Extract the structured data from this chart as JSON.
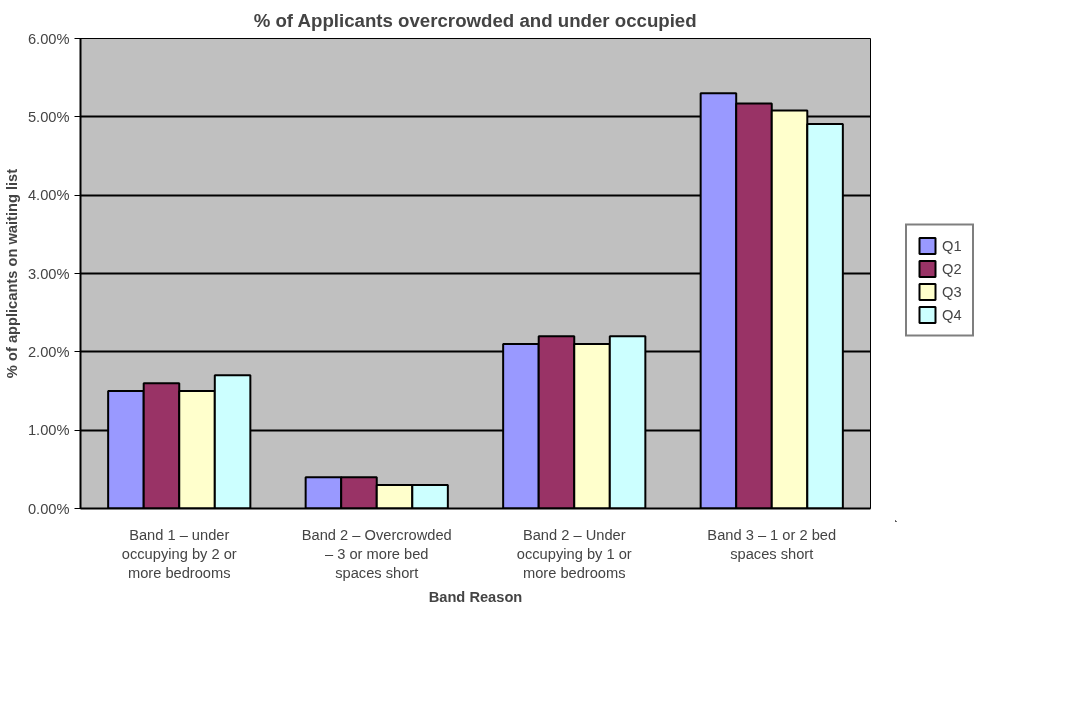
{
  "chart_data": {
    "type": "bar",
    "title": "% of Applicants overcrowded and under occupied",
    "xlabel": "Band Reason",
    "ylabel": "% of applicants on waiting list",
    "categories": [
      "Band 1 – under occupying by 2 or more bedrooms",
      "Band 2 – Overcrowded – 3 or more bed spaces short",
      "Band 2 – Under occupying by 1 or more bedrooms",
      "Band 3 – 1 or 2 bed spaces short"
    ],
    "series": [
      {
        "name": "Q1",
        "color": "#9999ff",
        "values": [
          1.5,
          0.4,
          2.1,
          5.3
        ]
      },
      {
        "name": "Q2",
        "color": "#993366",
        "values": [
          1.6,
          0.4,
          2.2,
          5.17
        ]
      },
      {
        "name": "Q3",
        "color": "#ffffcc",
        "values": [
          1.5,
          0.3,
          2.1,
          5.08
        ]
      },
      {
        "name": "Q4",
        "color": "#ccffff",
        "values": [
          1.7,
          0.3,
          2.2,
          4.91
        ]
      }
    ],
    "ylim": [
      0,
      6
    ],
    "yticks": [
      {
        "value": 0,
        "label": "0.00%"
      },
      {
        "value": 1,
        "label": "1.00%"
      },
      {
        "value": 2,
        "label": "2.00%"
      },
      {
        "value": 3,
        "label": "3.00%"
      },
      {
        "value": 4,
        "label": "4.00%"
      },
      {
        "value": 5,
        "label": "5.00%"
      },
      {
        "value": 6,
        "label": "6.00%"
      }
    ],
    "grid": "y",
    "legend": "right"
  }
}
